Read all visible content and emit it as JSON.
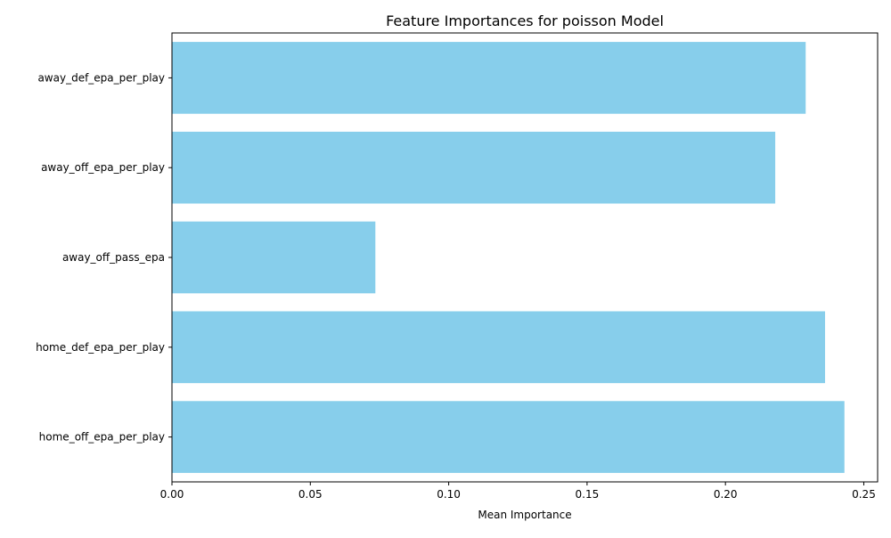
{
  "chart_data": {
    "type": "bar",
    "orientation": "horizontal",
    "title": "Feature Importances for poisson Model",
    "xlabel": "Mean Importance",
    "ylabel": "",
    "categories": [
      "away_def_epa_per_play",
      "away_off_epa_per_play",
      "away_off_pass_epa",
      "home_def_epa_per_play",
      "home_off_epa_per_play"
    ],
    "values": [
      0.229,
      0.218,
      0.0735,
      0.236,
      0.243
    ],
    "xlim": [
      0,
      0.255
    ],
    "xticks": [
      "0.00",
      "0.05",
      "0.10",
      "0.15",
      "0.20",
      "0.25"
    ],
    "bar_color": "#87CEEB",
    "grid": false,
    "legend": "none"
  }
}
